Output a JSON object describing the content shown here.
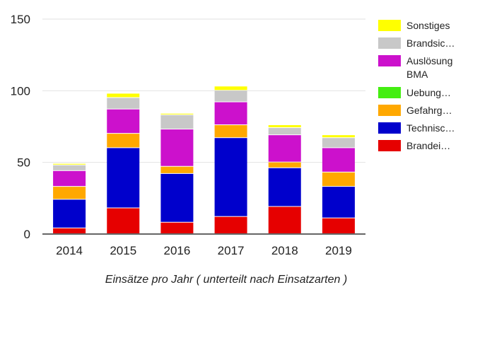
{
  "chart_data": {
    "type": "bar",
    "stacked": true,
    "xlabel": "Einsätze pro Jahr ( unterteilt nach Einsatzarten )",
    "ylabel": "",
    "ylim": [
      0,
      150
    ],
    "yticks": [
      "0",
      "50",
      "100",
      "150"
    ],
    "grid": true,
    "legend_position": "right",
    "categories": [
      "2014",
      "2015",
      "2016",
      "2017",
      "2018",
      "2019"
    ],
    "series": [
      {
        "name": "Brandei…",
        "color": "#e60000",
        "values": [
          4,
          18,
          8,
          12,
          19,
          11
        ]
      },
      {
        "name": "Technisc…",
        "color": "#0000cc",
        "values": [
          20,
          42,
          34,
          55,
          27,
          22
        ]
      },
      {
        "name": "Gefahrg…",
        "color": "#ffa800",
        "values": [
          9,
          10,
          5,
          9,
          4,
          10
        ]
      },
      {
        "name": "Uebung…",
        "color": "#44ee11",
        "values": [
          0,
          0,
          0,
          0,
          0,
          0
        ]
      },
      {
        "name": "Auslösung BMA",
        "color": "#cc11cc",
        "values": [
          11,
          17,
          26,
          16,
          19,
          17
        ]
      },
      {
        "name": "Brandsic…",
        "color": "#c8c8c8",
        "values": [
          4,
          8,
          10,
          8,
          5,
          7
        ]
      },
      {
        "name": "Sonstiges",
        "color": "#ffff00",
        "values": [
          1,
          3,
          1,
          3,
          2,
          2
        ]
      }
    ],
    "legend": [
      {
        "lines": [
          "Sonstiges"
        ],
        "color": "#ffff00"
      },
      {
        "lines": [
          "Brandsic…"
        ],
        "color": "#c8c8c8"
      },
      {
        "lines": [
          "Auslösung",
          "BMA"
        ],
        "color": "#cc11cc"
      },
      {
        "lines": [
          "Uebung…"
        ],
        "color": "#44ee11"
      },
      {
        "lines": [
          "Gefahrg…"
        ],
        "color": "#ffa800"
      },
      {
        "lines": [
          "Technisc…"
        ],
        "color": "#0000cc"
      },
      {
        "lines": [
          "Brandei…"
        ],
        "color": "#e60000"
      }
    ]
  }
}
